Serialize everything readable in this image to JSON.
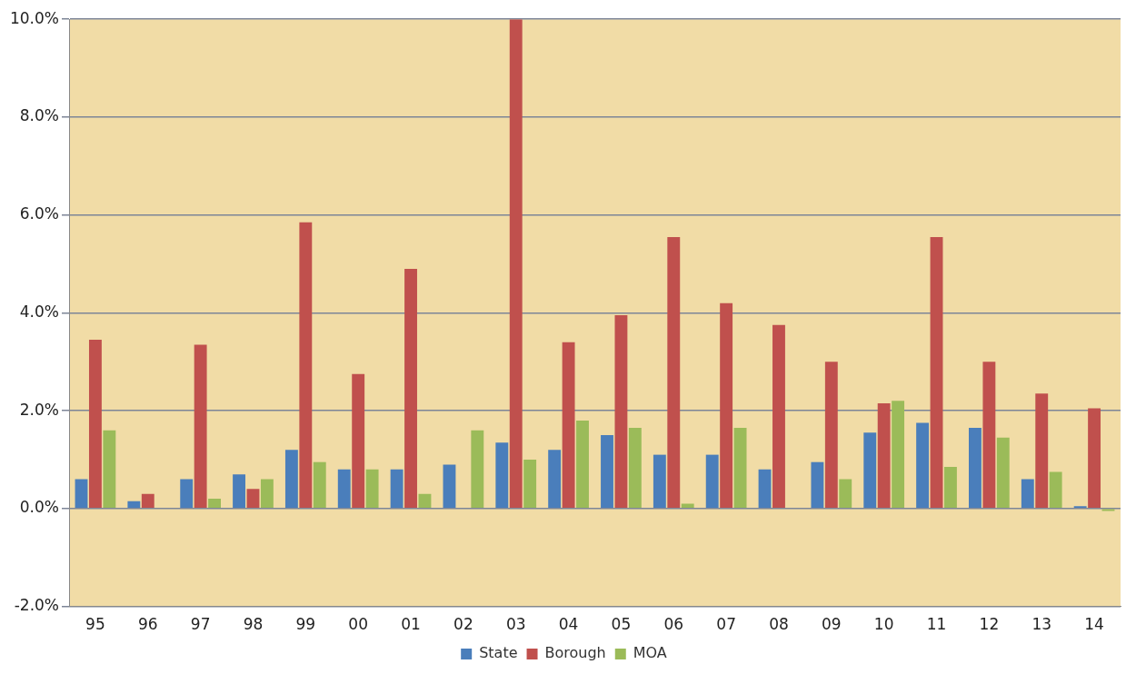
{
  "chart_data": {
    "type": "bar",
    "categories": [
      "95",
      "96",
      "97",
      "98",
      "99",
      "00",
      "01",
      "02",
      "03",
      "04",
      "05",
      "06",
      "07",
      "08",
      "09",
      "10",
      "11",
      "12",
      "13",
      "14"
    ],
    "series": [
      {
        "name": "State",
        "color": "#4a7ebb",
        "values": [
          0.6,
          0.15,
          0.6,
          0.7,
          1.2,
          0.8,
          0.8,
          0.9,
          1.35,
          1.2,
          1.5,
          1.1,
          1.1,
          0.8,
          0.95,
          1.55,
          1.75,
          1.65,
          0.6,
          0.05
        ]
      },
      {
        "name": "Borough",
        "color": "#c0504d",
        "values": [
          3.45,
          0.3,
          3.35,
          0.4,
          5.85,
          2.75,
          4.9,
          0,
          10.0,
          3.4,
          3.95,
          5.55,
          4.2,
          3.75,
          3.0,
          2.15,
          5.55,
          3.0,
          2.35,
          2.05
        ]
      },
      {
        "name": "MOA",
        "color": "#9bbb59",
        "values": [
          1.6,
          0,
          0.2,
          0.6,
          0.95,
          0.8,
          0.3,
          1.6,
          1.0,
          1.8,
          1.65,
          0.1,
          1.65,
          0,
          0.6,
          2.2,
          0.85,
          1.45,
          0.75,
          -0.05
        ]
      }
    ],
    "ylim": [
      -2,
      10
    ],
    "yticks": [
      {
        "value": -2,
        "label": "-2.0%"
      },
      {
        "value": 0,
        "label": "0.0%"
      },
      {
        "value": 2,
        "label": "2.0%"
      },
      {
        "value": 4,
        "label": "4.0%"
      },
      {
        "value": 6,
        "label": "6.0%"
      },
      {
        "value": 8,
        "label": "8.0%"
      },
      {
        "value": 10,
        "label": "10.0%"
      }
    ],
    "grid": "y",
    "legend": "bottom"
  }
}
